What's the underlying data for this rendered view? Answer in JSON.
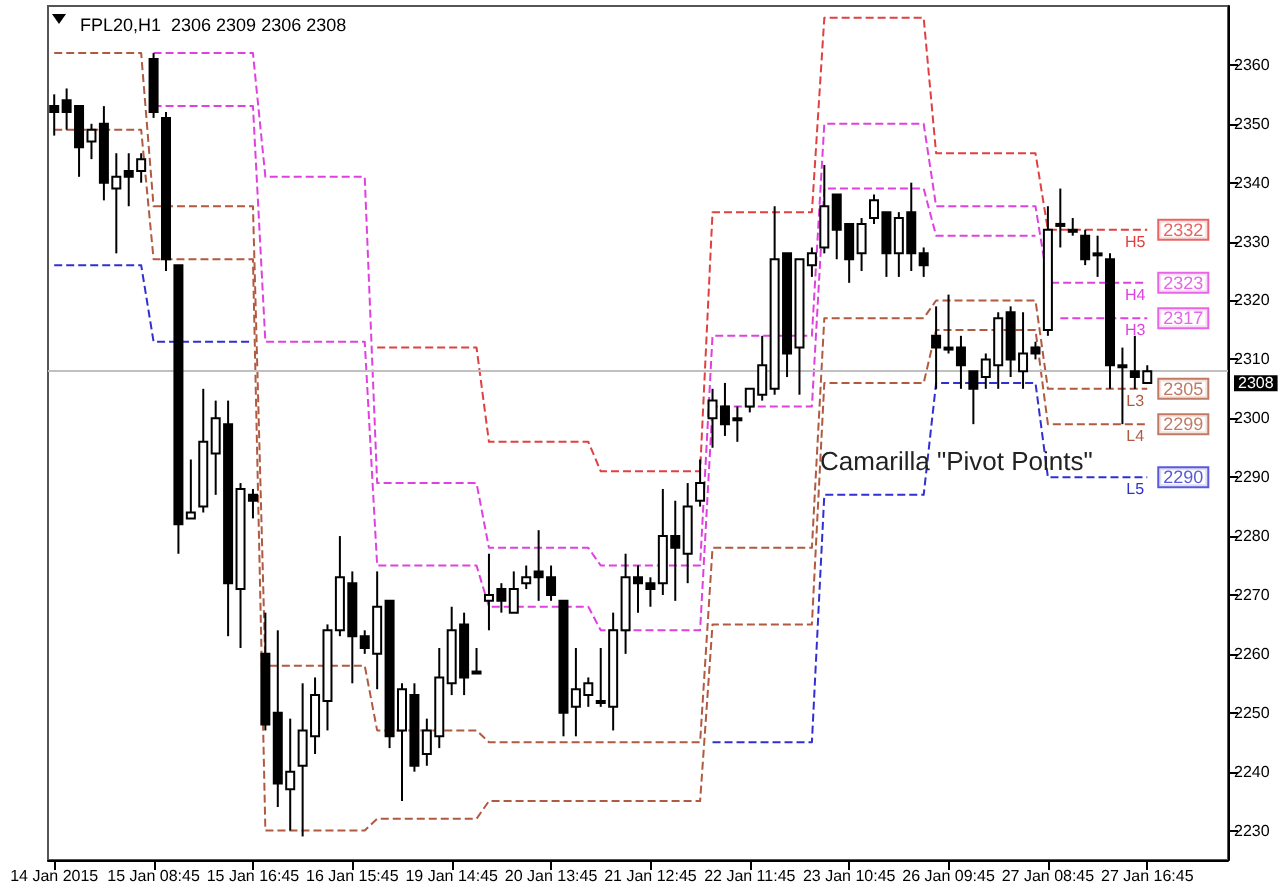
{
  "chart_data": {
    "type": "candlestick",
    "title": "FPL20,H1  2306 2309 2306 2308",
    "categories": [
      "14 Jan 2015",
      null,
      null,
      null,
      null,
      null,
      null,
      null,
      "15 Jan 08:45",
      null,
      null,
      null,
      null,
      null,
      null,
      null,
      "15 Jan 16:45",
      null,
      null,
      null,
      null,
      null,
      null,
      null,
      "16 Jan 15:45",
      null,
      null,
      null,
      null,
      null,
      null,
      null,
      "19 Jan 14:45",
      null,
      null,
      null,
      null,
      null,
      null,
      null,
      "20 Jan 13:45",
      null,
      null,
      null,
      null,
      null,
      null,
      null,
      "21 Jan 12:45",
      null,
      null,
      null,
      null,
      null,
      null,
      null,
      "22 Jan 11:45",
      null,
      null,
      null,
      null,
      null,
      null,
      null,
      "23 Jan 10:45",
      null,
      null,
      null,
      null,
      null,
      null,
      null,
      "26 Jan 09:45",
      null,
      null,
      null,
      null,
      null,
      null,
      null,
      "27 Jan 08:45",
      null,
      null,
      null,
      null,
      null,
      null,
      null,
      "27 Jan 16:45",
      null,
      null,
      null,
      null,
      null,
      null
    ],
    "ohlc": [
      [
        2353,
        2355,
        2348,
        2352
      ],
      [
        2354,
        2356,
        2349,
        2352
      ],
      [
        2353,
        2353,
        2341,
        2346
      ],
      [
        2347,
        2350,
        2344,
        2349
      ],
      [
        2350,
        2353,
        2337,
        2340
      ],
      [
        2339,
        2345,
        2328,
        2341
      ],
      [
        2342,
        2345,
        2336,
        2341
      ],
      [
        2342,
        2345,
        2340,
        2344
      ],
      [
        2361,
        2362,
        2351,
        2352
      ],
      [
        2351,
        2352,
        2325,
        2327
      ],
      [
        2326,
        2326,
        2277,
        2282
      ],
      [
        2283,
        2293,
        2283,
        2284
      ],
      [
        2285,
        2305,
        2284,
        2296
      ],
      [
        2294,
        2303,
        2287,
        2300
      ],
      [
        2299,
        2303,
        2263,
        2272
      ],
      [
        2271,
        2289,
        2261,
        2288
      ],
      [
        2287,
        2288,
        2283,
        2286
      ],
      [
        2260,
        2267,
        2247,
        2248
      ],
      [
        2250,
        2264,
        2234,
        2238
      ],
      [
        2237,
        2249,
        2230,
        2240
      ],
      [
        2241,
        2255,
        2229,
        2247
      ],
      [
        2246,
        2256,
        2243,
        2253
      ],
      [
        2252,
        2265,
        2247,
        2264
      ],
      [
        2264,
        2280,
        2263,
        2273
      ],
      [
        2272,
        2274,
        2255,
        2263
      ],
      [
        2263,
        2264,
        2260,
        2261
      ],
      [
        2260,
        2274,
        2254,
        2268
      ],
      [
        2269,
        2269,
        2244,
        2246
      ],
      [
        2247,
        2255,
        2235,
        2254
      ],
      [
        2253,
        2255,
        2240,
        2241
      ],
      [
        2243,
        2249,
        2241,
        2247
      ],
      [
        2246,
        2261,
        2244,
        2256
      ],
      [
        2255,
        2268,
        2253,
        2264
      ],
      [
        2265,
        2267,
        2253,
        2256
      ],
      [
        2257,
        2261,
        2257,
        2257
      ],
      [
        2269,
        2277,
        2264,
        2270
      ],
      [
        2271,
        2272,
        2267,
        2269
      ],
      [
        2267,
        2274,
        2267,
        2271
      ],
      [
        2272,
        2275,
        2271,
        2273
      ],
      [
        2274,
        2281,
        2269,
        2273
      ],
      [
        2273,
        2275,
        2269,
        2270
      ],
      [
        2269,
        2269,
        2246,
        2250
      ],
      [
        2251,
        2261,
        2246,
        2254
      ],
      [
        2253,
        2256,
        2251,
        2255
      ],
      [
        2252,
        2261,
        2251,
        2252
      ],
      [
        2251,
        2267,
        2247,
        2264
      ],
      [
        2264,
        2277,
        2260,
        2273
      ],
      [
        2273,
        2275,
        2267,
        2272
      ],
      [
        2272,
        2273,
        2268,
        2271
      ],
      [
        2272,
        2288,
        2270,
        2280
      ],
      [
        2280,
        2286,
        2269,
        2278
      ],
      [
        2277,
        2289,
        2272,
        2285
      ],
      [
        2286,
        2293,
        2285,
        2289
      ],
      [
        2300,
        2305,
        2295,
        2303
      ],
      [
        2302,
        2306,
        2297,
        2299
      ],
      [
        2300,
        2302,
        2296,
        2300
      ],
      [
        2302,
        2305,
        2301,
        2305
      ],
      [
        2304,
        2314,
        2303,
        2309
      ],
      [
        2305,
        2336,
        2304,
        2327
      ],
      [
        2328,
        2328,
        2307,
        2311
      ],
      [
        2312,
        2327,
        2304,
        2327
      ],
      [
        2326,
        2329,
        2324,
        2328
      ],
      [
        2329,
        2343,
        2328,
        2336
      ],
      [
        2338,
        2338,
        2327,
        2332
      ],
      [
        2333,
        2333,
        2323,
        2327
      ],
      [
        2328,
        2334,
        2325,
        2333
      ],
      [
        2334,
        2338,
        2333,
        2337
      ],
      [
        2335,
        2335,
        2324,
        2328
      ],
      [
        2328,
        2335,
        2324,
        2334
      ],
      [
        2335,
        2340,
        2325,
        2328
      ],
      [
        2328,
        2329,
        2324,
        2326
      ],
      [
        2314,
        2319,
        2305,
        2312
      ],
      [
        2312,
        2321,
        2311,
        2312
      ],
      [
        2312,
        2314,
        2305,
        2309
      ],
      [
        2308,
        2308,
        2299,
        2305
      ],
      [
        2307,
        2311,
        2305,
        2310
      ],
      [
        2309,
        2318,
        2305,
        2317
      ],
      [
        2318,
        2319,
        2307,
        2310
      ],
      [
        2308,
        2318,
        2305,
        2311
      ],
      [
        2312,
        2313,
        2310,
        2311
      ],
      [
        2315,
        2336,
        2314,
        2332
      ],
      [
        2333,
        2339,
        2329,
        2333
      ],
      [
        2332,
        2334,
        2331,
        2332
      ],
      [
        2331,
        2332,
        2326,
        2327
      ],
      [
        2328,
        2331,
        2324,
        2328
      ],
      [
        2327,
        2328,
        2305,
        2309
      ],
      [
        2309,
        2312,
        2299,
        2309
      ],
      [
        2308,
        2314,
        2305,
        2307
      ],
      [
        2306,
        2309,
        2306,
        2308
      ],
      null,
      null,
      null,
      null,
      null,
      null
    ],
    "series": [
      {
        "name": "H5",
        "type": "line",
        "color": "#e04040",
        "values": [
          null,
          null,
          null,
          null,
          null,
          null,
          null,
          null,
          null,
          null,
          null,
          null,
          null,
          null,
          null,
          null,
          null,
          null,
          null,
          null,
          null,
          null,
          null,
          null,
          null,
          null,
          2312,
          2312,
          2312,
          2312,
          2312,
          2312,
          2312,
          2312,
          2312,
          2296,
          2296,
          2296,
          2296,
          2296,
          2296,
          2296,
          2296,
          2296,
          2291,
          2291,
          2291,
          2291,
          2291,
          2291,
          2291,
          2291,
          2291,
          2335,
          2335,
          2335,
          2335,
          2335,
          2335,
          2335,
          2335,
          2335,
          2368,
          2368,
          2368,
          2368,
          2368,
          2368,
          2368,
          2368,
          2368,
          2345,
          2345,
          2345,
          2345,
          2345,
          2345,
          2345,
          2345,
          2345,
          2332,
          2332,
          2332,
          2332,
          2332,
          2332,
          2332,
          2332,
          2332,
          null,
          null,
          null,
          null,
          null,
          null
        ]
      },
      {
        "name": "H4",
        "type": "line",
        "color": "#e040e0",
        "values": [
          null,
          null,
          null,
          null,
          null,
          null,
          null,
          null,
          2362,
          2362,
          2362,
          2362,
          2362,
          2362,
          2362,
          2362,
          2362,
          2341,
          2341,
          2341,
          2341,
          2341,
          2341,
          2341,
          2341,
          2341,
          2289,
          2289,
          2289,
          2289,
          2289,
          2289,
          2289,
          2289,
          2289,
          2278,
          2278,
          2278,
          2278,
          2278,
          2278,
          2278,
          2278,
          2278,
          2275,
          2275,
          2275,
          2275,
          2275,
          2275,
          2275,
          2275,
          2275,
          2314,
          2314,
          2314,
          2314,
          2314,
          2314,
          2314,
          2314,
          2314,
          2350,
          2350,
          2350,
          2350,
          2350,
          2350,
          2350,
          2350,
          2350,
          2336,
          2336,
          2336,
          2336,
          2336,
          2336,
          2336,
          2336,
          2336,
          2323,
          2323,
          2323,
          2323,
          2323,
          2323,
          2323,
          2323,
          2323,
          null,
          null,
          null,
          null,
          null,
          null
        ]
      },
      {
        "name": "H3",
        "type": "line",
        "color": "#e040e0",
        "values": [
          null,
          null,
          null,
          null,
          null,
          null,
          null,
          null,
          2353,
          2353,
          2353,
          2353,
          2353,
          2353,
          2353,
          2353,
          2353,
          2313,
          2313,
          2313,
          2313,
          2313,
          2313,
          2313,
          2313,
          2313,
          2275,
          2275,
          2275,
          2275,
          2275,
          2275,
          2275,
          2275,
          2275,
          2268,
          2268,
          2268,
          2268,
          2268,
          2268,
          2268,
          2268,
          2268,
          2264,
          2264,
          2264,
          2264,
          2264,
          2264,
          2264,
          2264,
          2264,
          2302,
          2302,
          2302,
          2302,
          2302,
          2302,
          2302,
          2302,
          2302,
          2339,
          2339,
          2339,
          2339,
          2339,
          2339,
          2339,
          2339,
          2339,
          2331,
          2331,
          2331,
          2331,
          2331,
          2331,
          2331,
          2331,
          2331,
          null,
          2317,
          2317,
          2317,
          2317,
          2317,
          2317,
          2317,
          2317,
          null,
          null,
          null,
          null,
          null,
          null
        ]
      },
      {
        "name": "L3",
        "type": "line",
        "color": "#b05a40",
        "values": [
          2362,
          2362,
          2362,
          2362,
          2362,
          2362,
          2362,
          2362,
          2336,
          2336,
          2336,
          2336,
          2336,
          2336,
          2336,
          2336,
          2336,
          2258,
          2258,
          2258,
          2258,
          2258,
          2258,
          2258,
          2258,
          2258,
          2247,
          2247,
          2247,
          2247,
          2247,
          2247,
          2247,
          2247,
          2247,
          2245,
          2245,
          2245,
          2245,
          2245,
          2245,
          2245,
          2245,
          2245,
          2245,
          2245,
          2245,
          2245,
          2245,
          2245,
          2245,
          2245,
          2245,
          2278,
          2278,
          2278,
          2278,
          2278,
          2278,
          2278,
          2278,
          2278,
          2317,
          2317,
          2317,
          2317,
          2317,
          2317,
          2317,
          2317,
          2317,
          2320,
          2320,
          2320,
          2320,
          2320,
          2320,
          2320,
          2320,
          2320,
          2305,
          2305,
          2305,
          2305,
          2305,
          2305,
          2305,
          2305,
          2305,
          null,
          null,
          null,
          null,
          null,
          null
        ]
      },
      {
        "name": "L4",
        "type": "line",
        "color": "#b05a40",
        "values": [
          2349,
          2349,
          2349,
          2349,
          2349,
          2349,
          2349,
          2349,
          2327,
          2327,
          2327,
          2327,
          2327,
          2327,
          2327,
          2327,
          2327,
          2230,
          2230,
          2230,
          2230,
          2230,
          2230,
          2230,
          2230,
          2230,
          2232,
          2232,
          2232,
          2232,
          2232,
          2232,
          2232,
          2232,
          2232,
          2235,
          2235,
          2235,
          2235,
          2235,
          2235,
          2235,
          2235,
          2235,
          2235,
          2235,
          2235,
          2235,
          2235,
          2235,
          2235,
          2235,
          2235,
          2265,
          2265,
          2265,
          2265,
          2265,
          2265,
          2265,
          2265,
          2265,
          2306,
          2306,
          2306,
          2306,
          2306,
          2306,
          2306,
          2306,
          2306,
          2315,
          2315,
          2315,
          2315,
          2315,
          2315,
          2315,
          2315,
          2315,
          2299,
          2299,
          2299,
          2299,
          2299,
          2299,
          2299,
          2299,
          2299,
          null,
          null,
          null,
          null,
          null,
          null
        ]
      },
      {
        "name": "L5",
        "type": "line",
        "color": "#3030d0",
        "values": [
          2326,
          2326,
          2326,
          2326,
          2326,
          2326,
          2326,
          2326,
          2313,
          2313,
          2313,
          2313,
          2313,
          2313,
          2313,
          2313,
          2313,
          null,
          null,
          null,
          null,
          null,
          null,
          null,
          null,
          null,
          null,
          null,
          null,
          null,
          null,
          null,
          null,
          null,
          null,
          null,
          null,
          null,
          null,
          null,
          null,
          null,
          null,
          null,
          null,
          null,
          null,
          null,
          null,
          null,
          null,
          null,
          null,
          2245,
          2245,
          2245,
          2245,
          2245,
          2245,
          2245,
          2245,
          2245,
          2287,
          2287,
          2287,
          2287,
          2287,
          2287,
          2287,
          2287,
          2287,
          2306,
          2306,
          2306,
          2306,
          2306,
          2306,
          2306,
          2306,
          2306,
          2290,
          2290,
          2290,
          2290,
          2290,
          2290,
          2290,
          2290,
          2290,
          null,
          null,
          null,
          null,
          null,
          null
        ]
      }
    ],
    "ylim": [
      2225,
      2370
    ],
    "yticks": [
      2230,
      2240,
      2250,
      2260,
      2270,
      2280,
      2290,
      2300,
      2310,
      2320,
      2330,
      2340,
      2350,
      2360
    ],
    "line_style": "dashed",
    "ref_lines": [
      {
        "axis": "y",
        "value": 2308,
        "label": "2308",
        "color": "#c0c0c0"
      }
    ],
    "annotations": [
      "Camarilla \"Pivot Points\"",
      {
        "text": "2332",
        "x": "27 Jan 16:45",
        "y": 2332
      },
      {
        "text": "2323",
        "x": "27 Jan 16:45",
        "y": 2323
      },
      {
        "text": "2317",
        "x": "27 Jan 16:45",
        "y": 2317
      },
      {
        "text": "2305",
        "x": "27 Jan 16:45",
        "y": 2305
      },
      {
        "text": "2299",
        "x": "27 Jan 16:45",
        "y": 2299
      },
      {
        "text": "2290",
        "x": "27 Jan 16:45",
        "y": 2290
      }
    ]
  }
}
